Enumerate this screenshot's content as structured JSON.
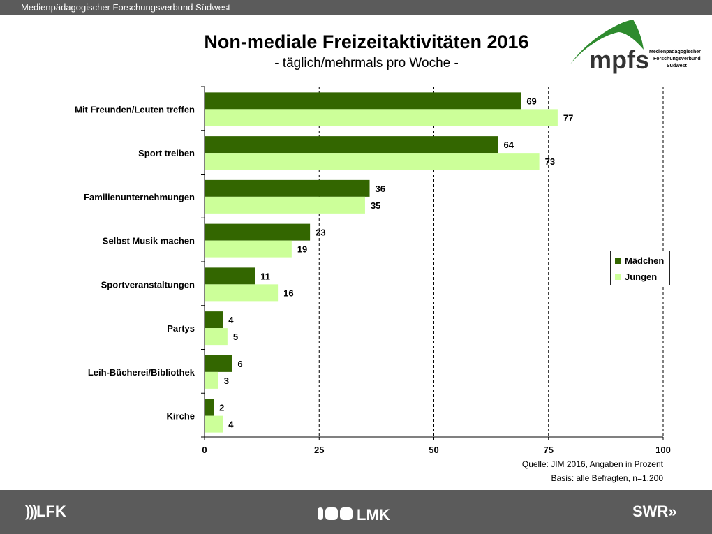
{
  "header": {
    "org": "Medienpädagogischer Forschungsverbund Südwest"
  },
  "logo": {
    "mark": "mpfs",
    "lines": [
      "Medienpädagogischer",
      "Forschungsverbund",
      "Südwest"
    ]
  },
  "colors": {
    "maedchen": "#336600",
    "jungen": "#ccff99",
    "bar": "#5b5b5b"
  },
  "chart_data": {
    "type": "bar",
    "orientation": "horizontal",
    "title": "Non-mediale Freizeitaktivitäten 2016",
    "subtitle": "- täglich/mehrmals pro Woche -",
    "categories": [
      "Mit Freunden/Leuten  treffen",
      "Sport treiben",
      "Familienunternehmungen",
      "Selbst Musik machen",
      "Sportveranstaltungen",
      "Partys",
      "Leih-Bücherei/Bibliothek",
      "Kirche"
    ],
    "series": [
      {
        "name": "Mädchen",
        "values": [
          69,
          64,
          36,
          23,
          11,
          4,
          6,
          2
        ]
      },
      {
        "name": "Jungen",
        "values": [
          77,
          73,
          35,
          19,
          16,
          5,
          3,
          4
        ]
      }
    ],
    "xlim": [
      0,
      100
    ],
    "xticks": [
      "0",
      "25",
      "50",
      "75",
      "100"
    ],
    "grid": "dashed vertical",
    "legend": "right"
  },
  "footnotes": [
    "Quelle: JIM 2016, Angaben in Prozent",
    "Basis: alle Befragten, n=1.200"
  ],
  "footer_logos": [
    "LFK",
    "LMK",
    "SWR"
  ]
}
